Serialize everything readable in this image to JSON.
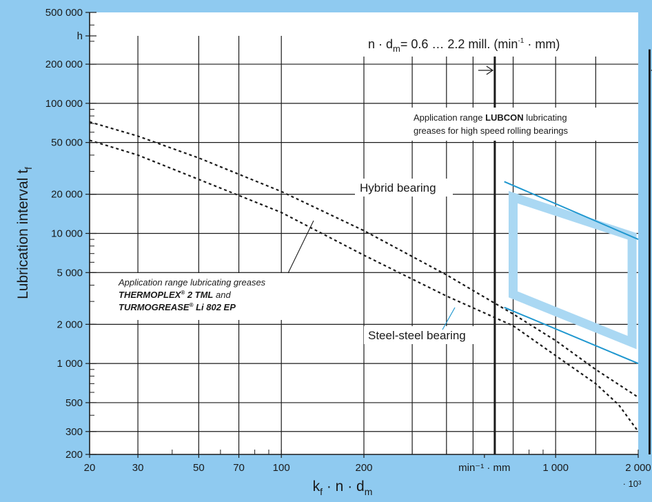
{
  "chart_data": {
    "type": "line",
    "x_scale": "log",
    "y_scale": "log",
    "x_units_note": "· 10³",
    "xlim": [
      20,
      2000
    ],
    "ylim": [
      200,
      500000
    ],
    "grid": true,
    "xlabel": {
      "main": "k",
      "sub1": "f",
      "mid": " · n · d",
      "sub2": "m"
    },
    "ylabel": {
      "main": "Lubrication interval t",
      "sub": "f"
    },
    "y_ticks": [
      {
        "value": 500000,
        "label": "500 000"
      },
      {
        "value": 330000,
        "label": "h"
      },
      {
        "value": 200000,
        "label": "200 000"
      },
      {
        "value": 100000,
        "label": "100 000"
      },
      {
        "value": 50000,
        "label": "50 000"
      },
      {
        "value": 20000,
        "label": "20 000"
      },
      {
        "value": 10000,
        "label": "10 000"
      },
      {
        "value": 5000,
        "label": "5 000"
      },
      {
        "value": 2000,
        "label": "2 000"
      },
      {
        "value": 1000,
        "label": "1 000"
      },
      {
        "value": 500,
        "label": "500"
      },
      {
        "value": 300,
        "label": "300"
      },
      {
        "value": 200,
        "label": "200"
      }
    ],
    "x_ticks": [
      {
        "value": 20,
        "label": "20"
      },
      {
        "value": 30,
        "label": "30"
      },
      {
        "value": 50,
        "label": "50"
      },
      {
        "value": 70,
        "label": "70"
      },
      {
        "value": 100,
        "label": "100"
      },
      {
        "value": 200,
        "label": "200"
      },
      {
        "value": 550,
        "label": "min⁻¹ · mm"
      },
      {
        "value": 1000,
        "label": "1 000"
      },
      {
        "value": 2000,
        "label": "2 000"
      }
    ],
    "vertical_grid_x": [
      30,
      50,
      70,
      100,
      200,
      300,
      400,
      500,
      700,
      1000,
      1400
    ],
    "range_bounds_x": [
      600,
      2200
    ],
    "range_header": {
      "pre": "n · d",
      "sub": "m",
      "mid": "= 0.6 … 2.2 mill. (min",
      "sup": "-1",
      "post": " · mm)"
    },
    "lubcon_box": {
      "line1_pre": "Application range ",
      "line1_bold": "LUBCON",
      "line1_post": " lubricating",
      "line2": "greases for high speed rolling bearings"
    },
    "grease_note": {
      "line1": "Application range lubricating greases",
      "line2_a": "THERMOPLEX",
      "line2_b": "®",
      "line2_c": " 2 TML",
      "line2_d": " and",
      "line3_a": "TURMOGREASE",
      "line3_b": "®",
      "line3_c": " Li 802 EP"
    },
    "series": [
      {
        "name": "",
        "style": "dotted",
        "color": "#1a1a1a",
        "points": [
          [
            20,
            72000
          ],
          [
            30,
            56000
          ],
          [
            50,
            38000
          ],
          [
            100,
            21000
          ],
          [
            200,
            10500
          ],
          [
            400,
            4800
          ],
          [
            700,
            2400
          ],
          [
            1000,
            1500
          ],
          [
            1400,
            900
          ],
          [
            2000,
            550
          ]
        ]
      },
      {
        "name": "",
        "style": "dotted",
        "color": "#1a1a1a",
        "points": [
          [
            20,
            52000
          ],
          [
            30,
            40000
          ],
          [
            50,
            26000
          ],
          [
            100,
            14500
          ],
          [
            200,
            6800
          ],
          [
            400,
            3300
          ],
          [
            700,
            1950
          ],
          [
            1000,
            1150
          ],
          [
            1400,
            700
          ],
          [
            1700,
            480
          ],
          [
            2000,
            300
          ]
        ]
      },
      {
        "name": "Hybrid bearing",
        "style": "solid",
        "color": "#1f97cf",
        "points": [
          [
            650,
            25000
          ],
          [
            2000,
            9000
          ]
        ]
      },
      {
        "name": "Steel-steel bearing",
        "style": "solid",
        "color": "#1f97cf",
        "points": [
          [
            650,
            2700
          ],
          [
            2000,
            1000
          ]
        ]
      }
    ],
    "lubcon_region": {
      "color": "#aad8f3",
      "points": [
        [
          700,
          19000
        ],
        [
          1900,
          9500
        ],
        [
          1900,
          1450
        ],
        [
          700,
          3400
        ]
      ]
    },
    "colors": {
      "page_bg": "#8fcaf0",
      "plot_bg": "#ffffff",
      "accent": "#1f97cf",
      "grid": "#1a1a1a"
    }
  }
}
